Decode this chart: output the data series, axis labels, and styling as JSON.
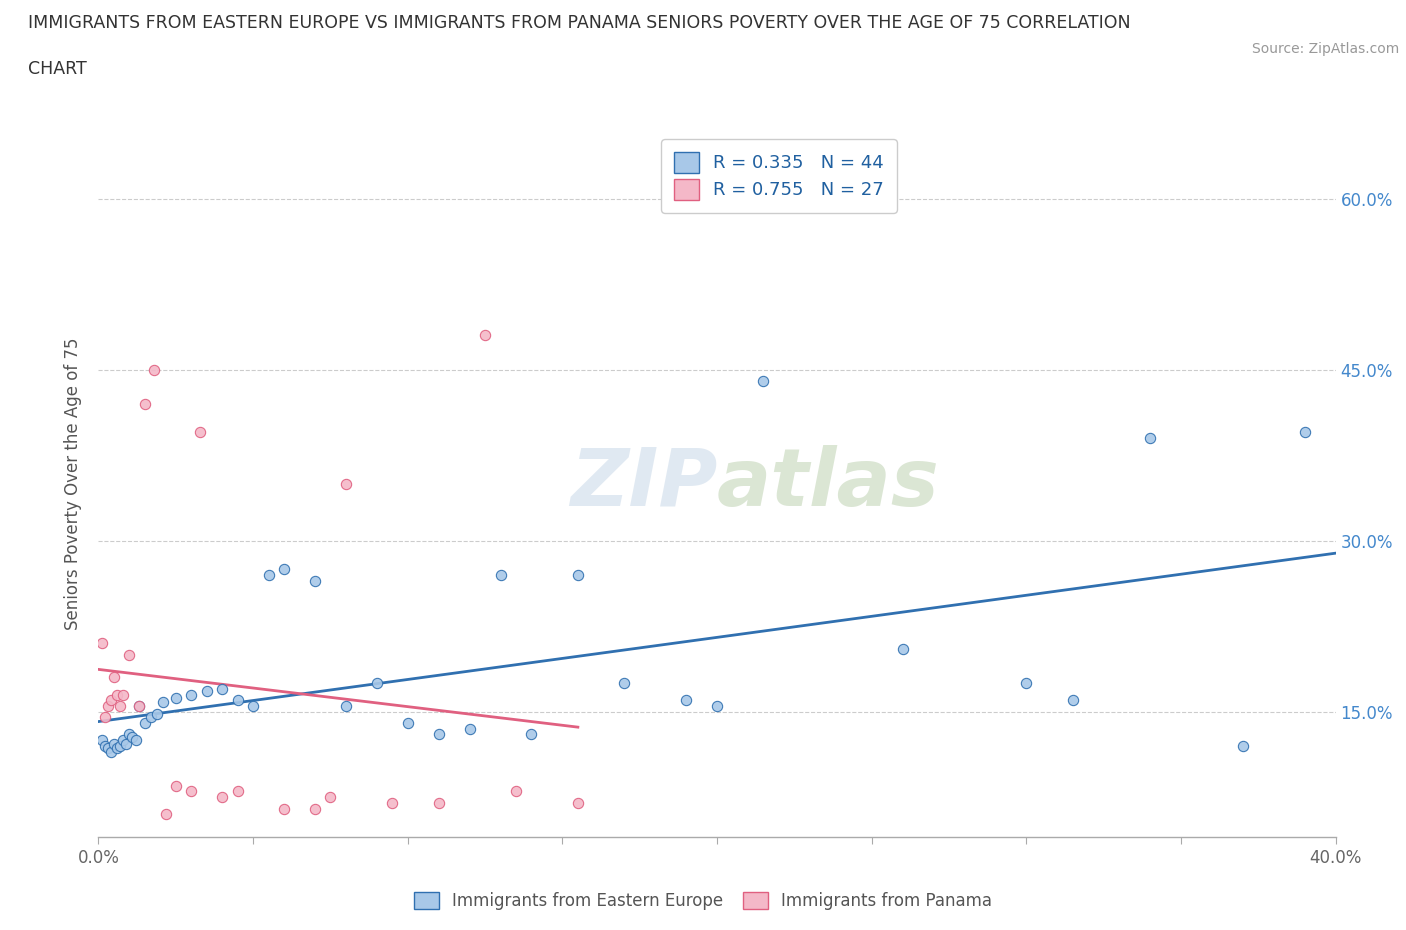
{
  "title_line1": "IMMIGRANTS FROM EASTERN EUROPE VS IMMIGRANTS FROM PANAMA SENIORS POVERTY OVER THE AGE OF 75 CORRELATION",
  "title_line2": "CHART",
  "source_text": "Source: ZipAtlas.com",
  "ylabel": "Seniors Poverty Over the Age of 75",
  "xmin": 0.0,
  "xmax": 0.4,
  "ymin": 0.04,
  "ymax": 0.66,
  "yticks": [
    0.15,
    0.3,
    0.45,
    0.6
  ],
  "ytick_labels": [
    "15.0%",
    "30.0%",
    "45.0%",
    "60.0%"
  ],
  "xticks": [
    0.0,
    0.05,
    0.1,
    0.15,
    0.2,
    0.25,
    0.3,
    0.35,
    0.4
  ],
  "xtick_labels": [
    "0.0%",
    "",
    "",
    "",
    "",
    "",
    "",
    "",
    "40.0%"
  ],
  "legend_r1": "R = 0.335",
  "legend_n1": "N = 44",
  "legend_r2": "R = 0.755",
  "legend_n2": "N = 27",
  "color_blue": "#a8c8e8",
  "color_pink": "#f4b8c8",
  "color_blue_line": "#3070b0",
  "color_pink_line": "#e06080",
  "watermark_zip": "ZIP",
  "watermark_atlas": "atlas",
  "blue_scatter_x": [
    0.001,
    0.002,
    0.003,
    0.004,
    0.005,
    0.006,
    0.007,
    0.008,
    0.009,
    0.01,
    0.011,
    0.012,
    0.013,
    0.015,
    0.017,
    0.019,
    0.021,
    0.025,
    0.03,
    0.035,
    0.04,
    0.045,
    0.05,
    0.055,
    0.06,
    0.07,
    0.08,
    0.09,
    0.1,
    0.11,
    0.12,
    0.13,
    0.14,
    0.155,
    0.17,
    0.19,
    0.2,
    0.215,
    0.26,
    0.3,
    0.315,
    0.34,
    0.37,
    0.39
  ],
  "blue_scatter_y": [
    0.125,
    0.12,
    0.118,
    0.115,
    0.122,
    0.118,
    0.12,
    0.125,
    0.122,
    0.13,
    0.128,
    0.125,
    0.155,
    0.14,
    0.145,
    0.148,
    0.158,
    0.162,
    0.165,
    0.168,
    0.17,
    0.16,
    0.155,
    0.27,
    0.275,
    0.265,
    0.155,
    0.175,
    0.14,
    0.13,
    0.135,
    0.27,
    0.13,
    0.27,
    0.175,
    0.16,
    0.155,
    0.44,
    0.205,
    0.175,
    0.16,
    0.39,
    0.12,
    0.395
  ],
  "pink_scatter_x": [
    0.001,
    0.002,
    0.003,
    0.004,
    0.005,
    0.006,
    0.007,
    0.008,
    0.01,
    0.013,
    0.015,
    0.018,
    0.022,
    0.025,
    0.03,
    0.033,
    0.04,
    0.045,
    0.06,
    0.07,
    0.075,
    0.08,
    0.095,
    0.11,
    0.125,
    0.135,
    0.155
  ],
  "pink_scatter_y": [
    0.21,
    0.145,
    0.155,
    0.16,
    0.18,
    0.165,
    0.155,
    0.165,
    0.2,
    0.155,
    0.42,
    0.45,
    0.06,
    0.085,
    0.08,
    0.395,
    0.075,
    0.08,
    0.065,
    0.065,
    0.075,
    0.35,
    0.07,
    0.07,
    0.48,
    0.08,
    0.07
  ]
}
